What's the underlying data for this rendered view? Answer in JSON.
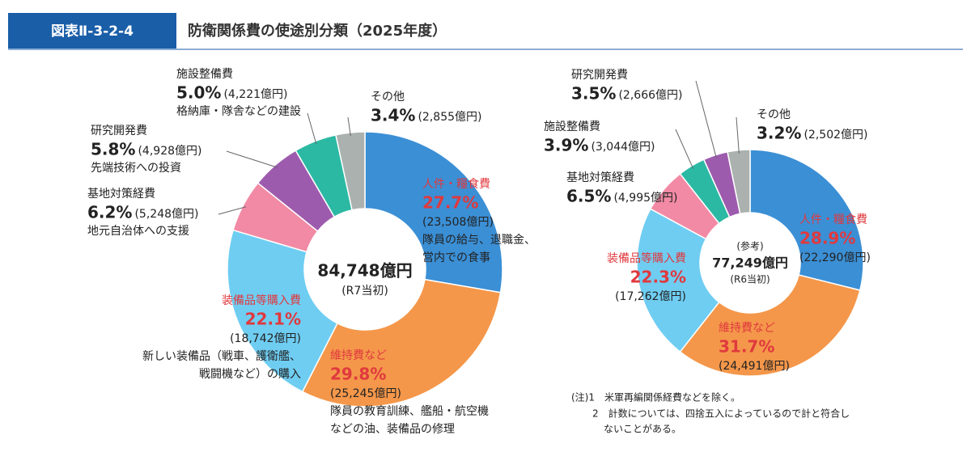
{
  "header": {
    "figure_no": "図表Ⅱ-3-2-4",
    "title": "防衛関係費の使途別分類（2025年度）"
  },
  "chart_data": [
    {
      "type": "pie",
      "donut": true,
      "center_labels": [
        "84,748億円",
        "(R7当初)"
      ],
      "categories": [
        "人件・糧食費",
        "維持費など",
        "装備品等購入費",
        "基地対策経費",
        "研究開発費",
        "施設整備費",
        "その他"
      ],
      "values": [
        27.7,
        29.8,
        22.1,
        6.2,
        5.8,
        5.0,
        3.4
      ],
      "value_labels": [
        "27.7%",
        "29.8%",
        "22.1%",
        "6.2%",
        "5.8%",
        "5.0%",
        "3.4%"
      ],
      "amount_labels": [
        "(23,508億円)",
        "(25,245億円)",
        "(18,742億円)",
        "(5,248億円)",
        "(4,928億円)",
        "(4,221億円)",
        "(2,855億円)"
      ],
      "descriptions": [
        [
          "隊員の給与、退職金、",
          "営内での食事"
        ],
        [
          "隊員の教育訓練、艦船・航空機",
          "などの油、装備品の修理"
        ],
        [
          "新しい装備品（戦車、護衛艦、",
          "戦闘機など）の購入"
        ],
        [
          "地元自治体への支援"
        ],
        [
          "先端技術への投資"
        ],
        [
          "格納庫・隊舎などの建設"
        ],
        null
      ],
      "colors": [
        "#3b8fd5",
        "#f4974a",
        "#6fcdf2",
        "#f28aa5",
        "#9d5bae",
        "#2bb9a3",
        "#aab1ae"
      ]
    },
    {
      "type": "pie",
      "donut": true,
      "center_labels": [
        "(参考)",
        "77,249億円",
        "(R6当初)"
      ],
      "categories": [
        "人件・糧食費",
        "維持費など",
        "装備品等購入費",
        "基地対策経費",
        "施設整備費",
        "研究開発費",
        "その他"
      ],
      "values": [
        28.9,
        31.7,
        22.3,
        6.5,
        3.9,
        3.5,
        3.2
      ],
      "value_labels": [
        "28.9%",
        "31.7%",
        "22.3%",
        "6.5%",
        "3.9%",
        "3.5%",
        "3.2%"
      ],
      "amount_labels": [
        "(22,290億円)",
        "(24,491億円)",
        "(17,262億円)",
        "(4,995億円)",
        "(3,044億円)",
        "(2,666億円)",
        "(2,502億円)"
      ],
      "colors": [
        "#3b8fd5",
        "#f4974a",
        "#6fcdf2",
        "#f28aa5",
        "#2bb9a3",
        "#9d5bae",
        "#aab1ae"
      ]
    }
  ],
  "notes": [
    "(注)1　米軍再編関係経費などを除く。",
    "2　計数については、四捨五入によっているので計と符合し",
    "ないことがある。"
  ]
}
